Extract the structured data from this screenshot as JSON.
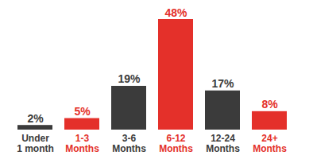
{
  "chart_data": {
    "type": "bar",
    "categories": [
      "Under\n1 month",
      "1-3\nMonths",
      "3-6\nMonths",
      "6-12\nMonths",
      "12-24\nMonths",
      "24+\nMonths"
    ],
    "values": [
      2,
      5,
      19,
      48,
      17,
      8
    ],
    "value_labels": [
      "2%",
      "5%",
      "19%",
      "48%",
      "17%",
      "8%"
    ],
    "colors": [
      "#3b3b3b",
      "#e4302a",
      "#3b3b3b",
      "#e4302a",
      "#3b3b3b",
      "#e4302a"
    ],
    "data_labels": true,
    "tick_labels": "x",
    "grid": false
  }
}
